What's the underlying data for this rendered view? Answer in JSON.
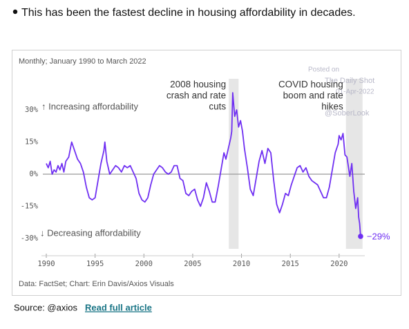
{
  "bullet": "This has been the fastest decline in housing affordability in decades.",
  "source": "Source: @axios",
  "link": "Read full article",
  "watermark": [
    "Posted on",
    "The Daily Shot",
    "01-Apr-2022",
    "@SoberLook"
  ],
  "chart_data": {
    "type": "line",
    "subtitle": "Monthly; January 1990 to March 2022",
    "credit": "Data: FactSet; Chart: Erin Davis/Axios Visuals",
    "up_label": "↑ Increasing affordability",
    "down_label": "↓ Decreasing affordability",
    "color": "#6f2ff2",
    "end_value_label": "−29%",
    "bands": [
      {
        "x0": 2008.7,
        "x1": 2009.7,
        "label": [
          "2008 housing",
          "crash and rate",
          "cuts"
        ]
      },
      {
        "x0": 2020.7,
        "x1": 2022.4,
        "label": [
          "COVID housing",
          "boom and rate",
          "hikes"
        ]
      }
    ],
    "xlim": [
      1989.2,
      2022.7
    ],
    "xticks": [
      1990,
      1995,
      2000,
      2005,
      2010,
      2015,
      2020
    ],
    "ylim": [
      -38,
      45
    ],
    "yticks": [
      {
        "value": 30,
        "label": "30%"
      },
      {
        "value": 15,
        "label": "15%"
      },
      {
        "value": 0,
        "label": "0%"
      },
      {
        "value": -15,
        "label": "-15%"
      },
      {
        "value": -30,
        "label": "-30%"
      }
    ],
    "zero_line": true,
    "x": [
      1990.0,
      1990.2,
      1990.4,
      1990.6,
      1990.8,
      1991.0,
      1991.2,
      1991.4,
      1991.6,
      1991.8,
      1992.0,
      1992.3,
      1992.6,
      1992.9,
      1993.2,
      1993.5,
      1993.8,
      1994.1,
      1994.4,
      1994.7,
      1995.0,
      1995.3,
      1995.6,
      1995.9,
      1996.0,
      1996.2,
      1996.5,
      1996.8,
      1997.1,
      1997.4,
      1997.7,
      1998.0,
      1998.3,
      1998.6,
      1998.9,
      1999.2,
      1999.5,
      1999.8,
      2000.1,
      2000.4,
      2000.7,
      2001.0,
      2001.3,
      2001.6,
      2001.9,
      2002.2,
      2002.5,
      2002.8,
      2003.1,
      2003.4,
      2003.7,
      2004.0,
      2004.3,
      2004.6,
      2004.9,
      2005.2,
      2005.5,
      2005.8,
      2006.1,
      2006.4,
      2006.7,
      2007.0,
      2007.3,
      2007.6,
      2007.9,
      2008.2,
      2008.4,
      2008.7,
      2008.9,
      2009.0,
      2009.1,
      2009.3,
      2009.5,
      2009.7,
      2009.9,
      2010.1,
      2010.3,
      2010.6,
      2010.9,
      2011.2,
      2011.5,
      2011.8,
      2012.1,
      2012.4,
      2012.7,
      2013.0,
      2013.3,
      2013.6,
      2013.9,
      2014.2,
      2014.5,
      2014.8,
      2015.1,
      2015.4,
      2015.7,
      2016.0,
      2016.3,
      2016.6,
      2016.9,
      2017.2,
      2017.5,
      2017.8,
      2018.1,
      2018.4,
      2018.7,
      2019.0,
      2019.3,
      2019.6,
      2019.9,
      2020.0,
      2020.2,
      2020.4,
      2020.6,
      2020.8,
      2021.0,
      2021.1,
      2021.3,
      2021.5,
      2021.7,
      2021.9,
      2022.0,
      2022.1,
      2022.2
    ],
    "values": [
      5,
      3,
      6,
      0,
      2,
      1,
      4,
      2,
      5,
      1,
      6,
      8,
      15,
      11,
      7,
      5,
      1,
      -6,
      -11,
      -12,
      -11,
      -3,
      5,
      11,
      15,
      6,
      0,
      2,
      4,
      3,
      1,
      4,
      3,
      4,
      1,
      -2,
      -9,
      -12,
      -13,
      -11,
      -5,
      0,
      2,
      4,
      3,
      1,
      0,
      1,
      4,
      4,
      -2,
      -3,
      -9,
      -10,
      -8,
      -7,
      -12,
      -15,
      -11,
      -4,
      -8,
      -13,
      -13,
      -6,
      2,
      10,
      7,
      13,
      17,
      20,
      38,
      27,
      30,
      22,
      25,
      20,
      12,
      3,
      -7,
      -10,
      -2,
      6,
      11,
      5,
      12,
      10,
      -3,
      -14,
      -18,
      -14,
      -9,
      -10,
      -5,
      -1,
      3,
      4,
      1,
      3,
      -1,
      -3,
      -4,
      -5,
      -8,
      -11,
      -11,
      -6,
      2,
      10,
      14,
      18,
      16,
      19,
      9,
      8,
      2,
      -1,
      5,
      -8,
      -16,
      -11,
      -20,
      -23,
      -29
    ]
  }
}
